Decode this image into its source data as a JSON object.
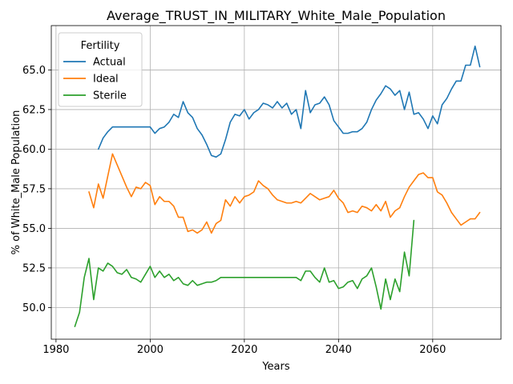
{
  "chart_data": {
    "type": "line",
    "title": "Average_TRUST_IN_MILITARY_White_Male_Population",
    "xlabel": "Years",
    "ylabel": "% of White_Male Population",
    "xlim": [
      1979,
      2074.5
    ],
    "ylim": [
      48.0,
      67.8
    ],
    "x_ticks": [
      1980,
      2000,
      2020,
      2040,
      2060
    ],
    "x_tick_labels": [
      "1980",
      "2000",
      "2020",
      "2040",
      "2060"
    ],
    "y_ticks": [
      50.0,
      52.5,
      55.0,
      57.5,
      60.0,
      62.5,
      65.0
    ],
    "y_tick_labels": [
      "50.0",
      "52.5",
      "55.0",
      "57.5",
      "60.0",
      "62.5",
      "65.0"
    ],
    "grid": true,
    "legend": {
      "title": "Fertility",
      "position": "upper-left",
      "entries": [
        "Actual",
        "Ideal",
        "Sterile"
      ]
    },
    "series": [
      {
        "name": "Actual",
        "color": "#1f77b4",
        "x": [
          1989,
          1990,
          1991,
          1992,
          1993,
          1994,
          1995,
          1996,
          1997,
          1998,
          1999,
          2000,
          2001,
          2002,
          2003,
          2004,
          2005,
          2006,
          2007,
          2008,
          2009,
          2010,
          2011,
          2012,
          2013,
          2014,
          2015,
          2016,
          2017,
          2018,
          2019,
          2020,
          2021,
          2022,
          2023,
          2024,
          2025,
          2026,
          2027,
          2028,
          2029,
          2030,
          2031,
          2032,
          2033,
          2034,
          2035,
          2036,
          2037,
          2038,
          2039,
          2040,
          2041,
          2042,
          2043,
          2044,
          2045,
          2046,
          2047,
          2048,
          2049,
          2050,
          2051,
          2052,
          2053,
          2054,
          2055,
          2056,
          2057,
          2058,
          2059,
          2060,
          2061,
          2062,
          2063,
          2064,
          2065,
          2066,
          2067,
          2068,
          2069,
          2070
        ],
        "values": [
          60.0,
          60.7,
          61.1,
          61.4,
          61.4,
          61.4,
          61.4,
          61.4,
          61.4,
          61.4,
          61.4,
          61.4,
          61.0,
          61.3,
          61.4,
          61.7,
          62.2,
          62.0,
          63.0,
          62.3,
          62.0,
          61.3,
          60.9,
          60.3,
          59.6,
          59.5,
          59.7,
          60.6,
          61.7,
          62.2,
          62.1,
          62.5,
          61.9,
          62.3,
          62.5,
          62.9,
          62.8,
          62.6,
          63.0,
          62.6,
          62.9,
          62.2,
          62.5,
          61.3,
          63.7,
          62.3,
          62.8,
          62.9,
          63.3,
          62.8,
          61.8,
          61.4,
          61.0,
          61.0,
          61.1,
          61.1,
          61.3,
          61.7,
          62.5,
          63.1,
          63.5,
          64.0,
          63.8,
          63.4,
          63.7,
          62.5,
          63.6,
          62.2,
          62.3,
          61.9,
          61.3,
          62.1,
          61.6,
          62.8,
          63.2,
          63.8,
          64.3,
          64.3,
          65.3,
          65.3,
          66.5,
          65.2
        ]
      },
      {
        "name": "Ideal",
        "color": "#ff7f0e",
        "x": [
          1987,
          1988,
          1989,
          1990,
          1991,
          1992,
          1993,
          1994,
          1995,
          1996,
          1997,
          1998,
          1999,
          2000,
          2001,
          2002,
          2003,
          2004,
          2005,
          2006,
          2007,
          2008,
          2009,
          2010,
          2011,
          2012,
          2013,
          2014,
          2015,
          2016,
          2017,
          2018,
          2019,
          2020,
          2021,
          2022,
          2023,
          2024,
          2025,
          2026,
          2027,
          2028,
          2029,
          2030,
          2031,
          2032,
          2033,
          2034,
          2035,
          2036,
          2037,
          2038,
          2039,
          2040,
          2041,
          2042,
          2043,
          2044,
          2045,
          2046,
          2047,
          2048,
          2049,
          2050,
          2051,
          2052,
          2053,
          2054,
          2055,
          2056,
          2057,
          2058,
          2059,
          2060,
          2061,
          2062,
          2063,
          2064,
          2065,
          2066,
          2067,
          2068,
          2069,
          2070
        ],
        "values": [
          57.3,
          56.3,
          57.8,
          56.9,
          58.3,
          59.7,
          59.0,
          58.3,
          57.6,
          57.0,
          57.6,
          57.5,
          57.9,
          57.7,
          56.5,
          57.0,
          56.7,
          56.7,
          56.4,
          55.7,
          55.7,
          54.8,
          54.9,
          54.7,
          54.9,
          55.4,
          54.7,
          55.3,
          55.5,
          56.8,
          56.4,
          57.0,
          56.6,
          57.0,
          57.1,
          57.3,
          58.0,
          57.7,
          57.5,
          57.1,
          56.8,
          56.7,
          56.6,
          56.6,
          56.7,
          56.6,
          56.9,
          57.2,
          57.0,
          56.8,
          56.9,
          57.0,
          57.4,
          56.9,
          56.6,
          56.0,
          56.1,
          56.0,
          56.4,
          56.3,
          56.1,
          56.5,
          56.1,
          56.7,
          55.7,
          56.1,
          56.3,
          57.0,
          57.6,
          58.0,
          58.4,
          58.5,
          58.2,
          58.2,
          57.3,
          57.1,
          56.6,
          56.0,
          55.6,
          55.2,
          55.4,
          55.6,
          55.6,
          56.0
        ]
      },
      {
        "name": "Sterile",
        "color": "#2ca02c",
        "x": [
          1984,
          1985,
          1986,
          1987,
          1988,
          1989,
          1990,
          1991,
          1992,
          1993,
          1994,
          1995,
          1996,
          1997,
          1998,
          1999,
          2000,
          2001,
          2002,
          2003,
          2004,
          2005,
          2006,
          2007,
          2008,
          2009,
          2010,
          2011,
          2012,
          2013,
          2014,
          2015,
          2016,
          2017,
          2018,
          2019,
          2020,
          2021,
          2022,
          2023,
          2024,
          2025,
          2026,
          2027,
          2028,
          2029,
          2030,
          2031,
          2032,
          2033,
          2034,
          2035,
          2036,
          2037,
          2038,
          2039,
          2040,
          2041,
          2042,
          2043,
          2044,
          2045,
          2046,
          2047,
          2048,
          2049,
          2050,
          2051,
          2052,
          2053,
          2054,
          2055,
          2056
        ],
        "values": [
          48.8,
          49.7,
          51.9,
          53.1,
          50.5,
          52.5,
          52.3,
          52.8,
          52.6,
          52.2,
          52.1,
          52.4,
          51.9,
          51.8,
          51.6,
          52.1,
          52.6,
          51.9,
          52.3,
          51.9,
          52.1,
          51.7,
          51.9,
          51.5,
          51.4,
          51.7,
          51.4,
          51.5,
          51.6,
          51.6,
          51.7,
          51.9,
          51.9,
          51.9,
          51.9,
          51.9,
          51.9,
          51.9,
          51.9,
          51.9,
          51.9,
          51.9,
          51.9,
          51.9,
          51.9,
          51.9,
          51.9,
          51.9,
          51.7,
          52.3,
          52.3,
          51.9,
          51.6,
          52.5,
          51.6,
          51.7,
          51.2,
          51.3,
          51.6,
          51.7,
          51.2,
          51.8,
          52.0,
          52.5,
          51.3,
          49.9,
          51.8,
          50.5,
          51.8,
          51.0,
          53.5,
          52.0,
          55.5
        ]
      }
    ]
  }
}
